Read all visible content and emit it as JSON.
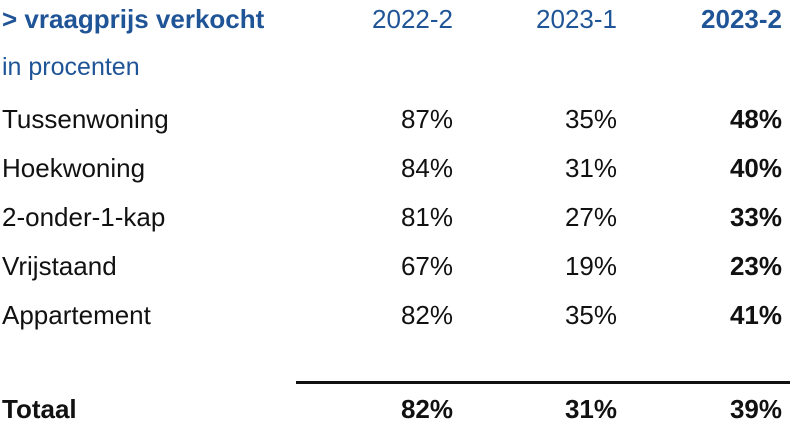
{
  "chart_data": {
    "type": "table",
    "title": "> vraagprijs verkocht",
    "subtitle": "in procenten",
    "columns": [
      "2022-2",
      "2023-1",
      "2023-2"
    ],
    "rows": [
      {
        "label": "Tussenwoning",
        "values": [
          "87%",
          "35%",
          "48%"
        ]
      },
      {
        "label": "Hoekwoning",
        "values": [
          "84%",
          "31%",
          "40%"
        ]
      },
      {
        "label": "2-onder-1-kap",
        "values": [
          "81%",
          "27%",
          "33%"
        ]
      },
      {
        "label": "Vrijstaand",
        "values": [
          "67%",
          "19%",
          "23%"
        ]
      },
      {
        "label": "Appartement",
        "values": [
          "82%",
          "35%",
          "41%"
        ]
      }
    ],
    "total": {
      "label": "Totaal",
      "values": [
        "82%",
        "31%",
        "39%"
      ]
    },
    "header_color": "#1f5496"
  }
}
